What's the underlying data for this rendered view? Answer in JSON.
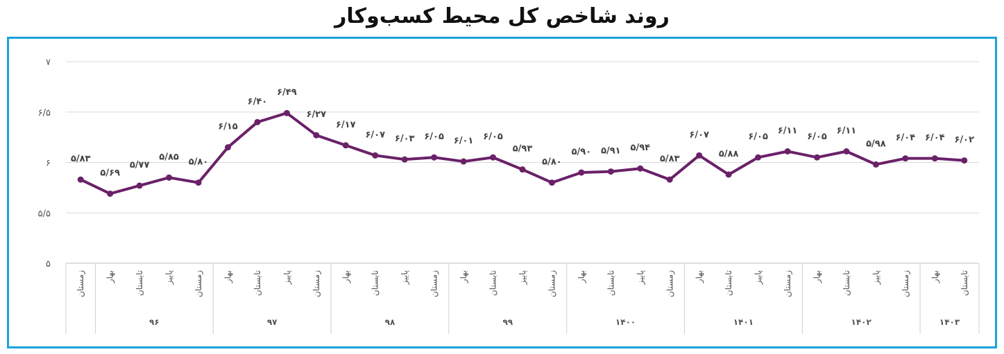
{
  "chart_data": {
    "type": "line",
    "title": "روند شاخص کل محیط کسب‌وکار",
    "ylim": [
      5,
      7
    ],
    "yticks": [
      {
        "value": 5,
        "label": "۵"
      },
      {
        "value": 5.5,
        "label": "۵/۵"
      },
      {
        "value": 6,
        "label": "۶"
      },
      {
        "value": 6.5,
        "label": "۶/۵"
      },
      {
        "value": 7,
        "label": "۷"
      }
    ],
    "grid": true,
    "line_color": "#6a2168",
    "frame_color": "#1aa3dc",
    "categories": [
      "زمستان",
      "بهار",
      "تابستان",
      "پاییز",
      "زمستان",
      "بهار",
      "تابستان",
      "پاییز",
      "زمستان",
      "بهار",
      "تابستان",
      "پاییز",
      "زمستان",
      "بهار",
      "تابستان",
      "پاییز",
      "زمستان",
      "بهار",
      "تابستان",
      "پاییز",
      "زمستان",
      "بهار",
      "تابستان",
      "پاییز",
      "زمستان",
      "بهار",
      "تابستان",
      "پاییز",
      "زمستان",
      "بهار",
      "تابستان"
    ],
    "year_groups": [
      {
        "label": "",
        "count": 1
      },
      {
        "label": "۹۶",
        "count": 4
      },
      {
        "label": "۹۷",
        "count": 4
      },
      {
        "label": "۹۸",
        "count": 4
      },
      {
        "label": "۹۹",
        "count": 4
      },
      {
        "label": "۱۴۰۰",
        "count": 4
      },
      {
        "label": "۱۴۰۱",
        "count": 4
      },
      {
        "label": "۱۴۰۲",
        "count": 4
      },
      {
        "label": "۱۴۰۳",
        "count": 2
      }
    ],
    "values": [
      5.83,
      5.69,
      5.77,
      5.85,
      5.8,
      6.15,
      6.4,
      6.49,
      6.27,
      6.17,
      6.07,
      6.03,
      6.05,
      6.01,
      6.05,
      5.93,
      5.8,
      5.9,
      5.91,
      5.94,
      5.83,
      6.07,
      5.88,
      6.05,
      6.11,
      6.05,
      6.11,
      5.98,
      6.04,
      6.04,
      6.02
    ],
    "data_labels": [
      "۵/۸۳",
      "۵/۶۹",
      "۵/۷۷",
      "۵/۸۵",
      "۵/۸۰",
      "۶/۱۵",
      "۶/۴۰",
      "۶/۴۹",
      "۶/۲۷",
      "۶/۱۷",
      "۶/۰۷",
      "۶/۰۳",
      "۶/۰۵",
      "۶/۰۱",
      "۶/۰۵",
      "۵/۹۳",
      "۵/۸۰",
      "۵/۹۰",
      "۵/۹۱",
      "۵/۹۴",
      "۵/۸۳",
      "۶/۰۷",
      "۵/۸۸",
      "۶/۰۵",
      "۶/۱۱",
      "۶/۰۵",
      "۶/۱۱",
      "۵/۹۸",
      "۶/۰۴",
      "۶/۰۴",
      "۶/۰۲"
    ]
  }
}
